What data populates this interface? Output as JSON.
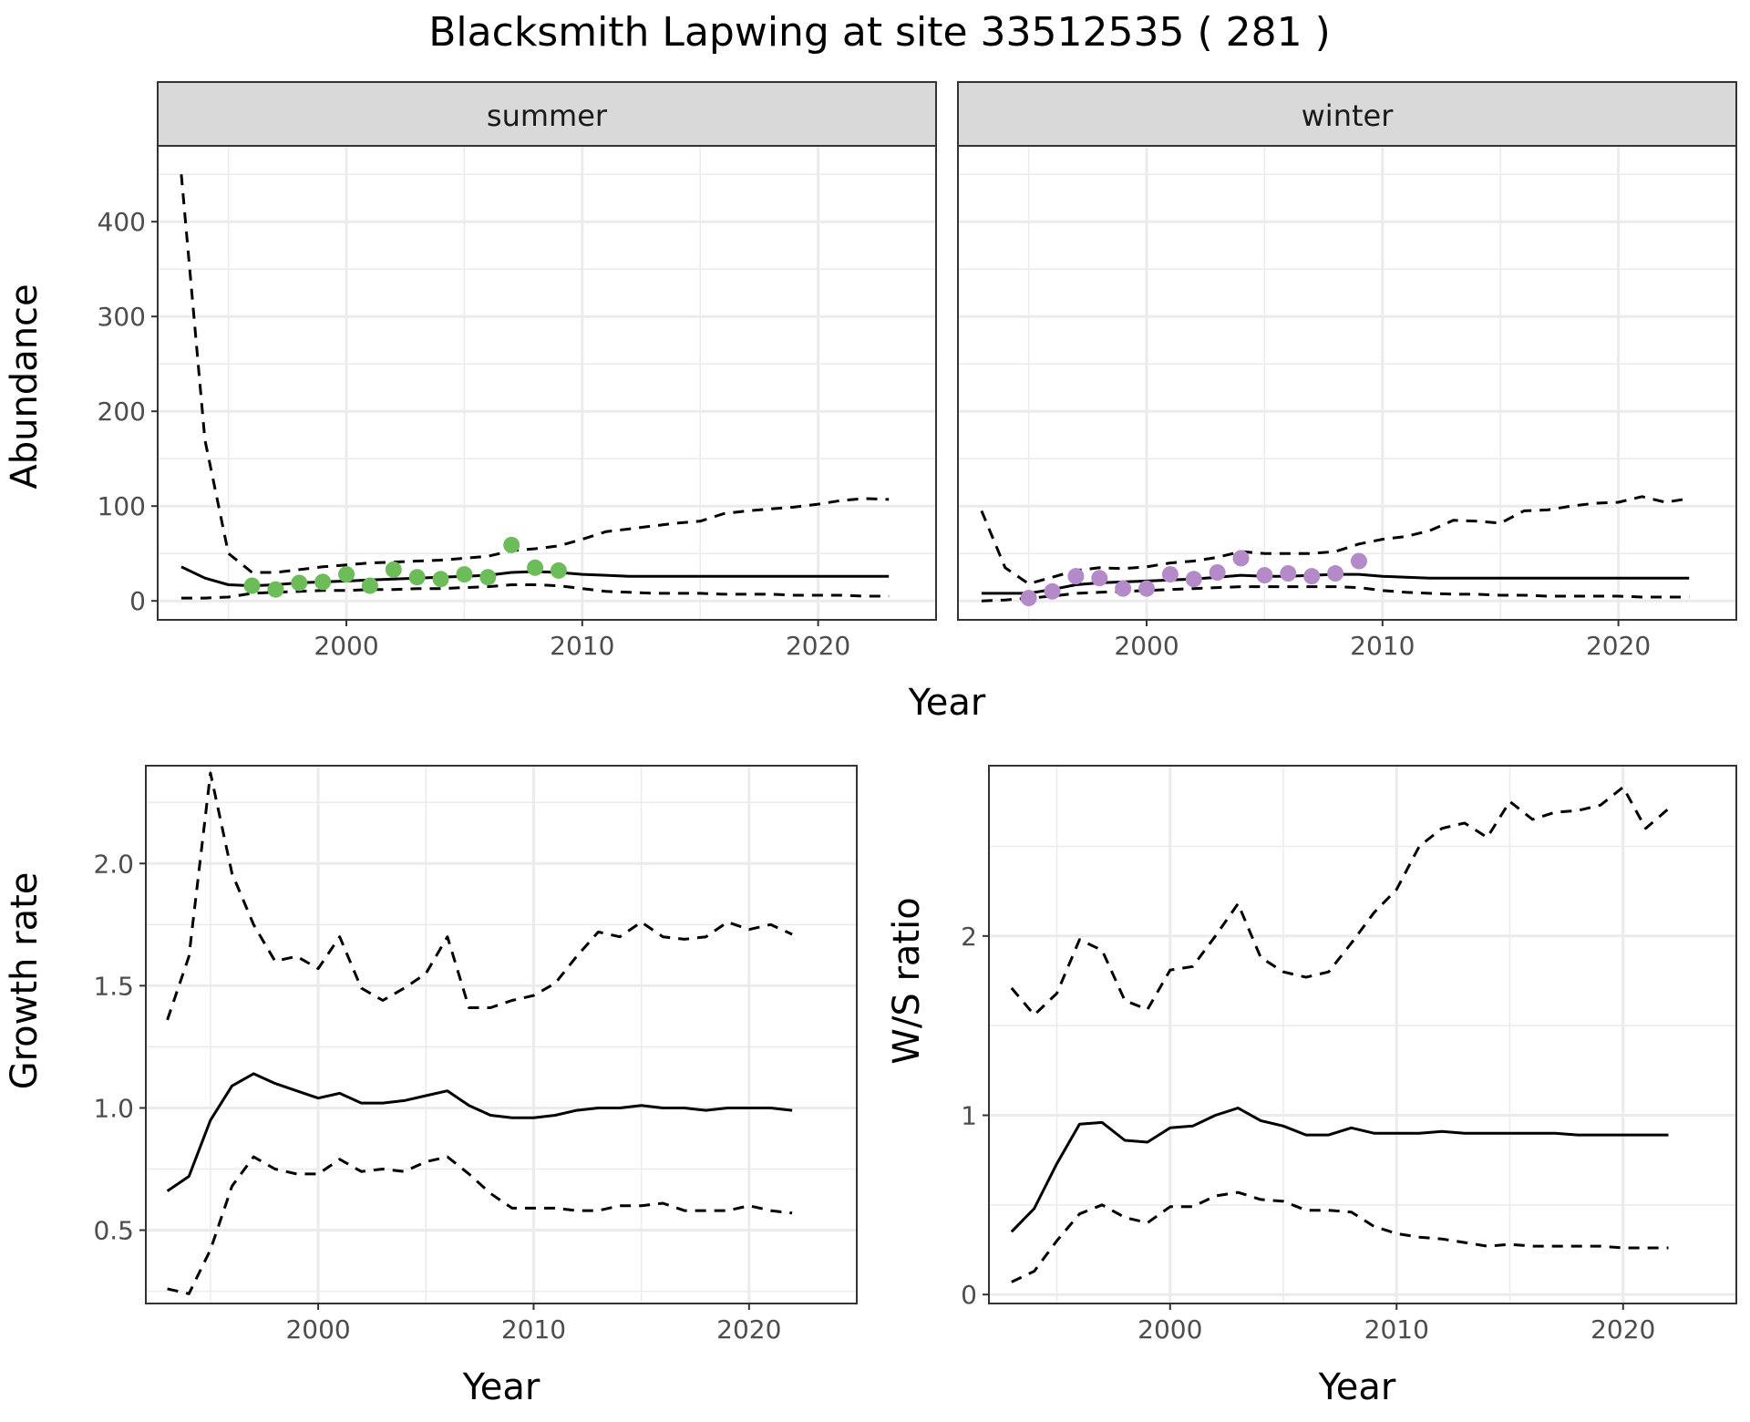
{
  "title": "Blacksmith Lapwing at site 33512535 ( 281 )",
  "colors": {
    "summer_points": "#6cbd59",
    "winter_points": "#b48ac9",
    "line": "#000000",
    "strip_fill": "#d9d9d9",
    "grid": "#ebebeb",
    "panel_border": "#333333"
  },
  "abundance_panel": {
    "xlabel": "Year",
    "ylabel": "Abundance",
    "xlim": [
      1992,
      2025
    ],
    "ylim": [
      -20,
      480
    ],
    "xticks": [
      2000,
      2010,
      2020
    ],
    "yticks": [
      0,
      100,
      200,
      300,
      400
    ]
  },
  "chart_data": [
    {
      "type": "line",
      "facet": "summer",
      "xlabel": "Year",
      "ylabel": "Abundance",
      "series": [
        {
          "style": "solid",
          "x": [
            1993,
            1994,
            1995,
            1996,
            1997,
            1998,
            1999,
            2000,
            2001,
            2002,
            2003,
            2004,
            2005,
            2006,
            2007,
            2008,
            2009,
            2010,
            2011,
            2012,
            2013,
            2014,
            2015,
            2016,
            2017,
            2018,
            2019,
            2020,
            2021,
            2022,
            2023
          ],
          "y": [
            36,
            24,
            17,
            16,
            17,
            19,
            20,
            21,
            22,
            23,
            24,
            25,
            26,
            27,
            30,
            31,
            30,
            28,
            27,
            26,
            26,
            26,
            26,
            26,
            26,
            26,
            26,
            26,
            26,
            26,
            26
          ]
        },
        {
          "style": "dashed",
          "x": [
            1993,
            1994,
            1995,
            1996,
            1997,
            1998,
            1999,
            2000,
            2001,
            2002,
            2003,
            2004,
            2005,
            2006,
            2007,
            2008,
            2009,
            2010,
            2011,
            2012,
            2013,
            2014,
            2015,
            2016,
            2017,
            2018,
            2019,
            2020,
            2021,
            2022,
            2023
          ],
          "y": [
            450,
            170,
            50,
            30,
            30,
            33,
            36,
            38,
            40,
            41,
            42,
            43,
            45,
            47,
            53,
            55,
            58,
            65,
            73,
            76,
            79,
            82,
            84,
            92,
            95,
            97,
            99,
            102,
            106,
            108,
            107
          ]
        },
        {
          "style": "dashed",
          "x": [
            1993,
            1994,
            1995,
            1996,
            1997,
            1998,
            1999,
            2000,
            2001,
            2002,
            2003,
            2004,
            2005,
            2006,
            2007,
            2008,
            2009,
            2010,
            2011,
            2012,
            2013,
            2014,
            2015,
            2016,
            2017,
            2018,
            2019,
            2020,
            2021,
            2022,
            2023
          ],
          "y": [
            3,
            3,
            4,
            8,
            9,
            10,
            11,
            11,
            12,
            12,
            13,
            13,
            14,
            15,
            17,
            17,
            16,
            13,
            10,
            9,
            8,
            8,
            8,
            7,
            7,
            7,
            6,
            6,
            6,
            5,
            5
          ]
        },
        {
          "style": "points",
          "x": [
            1996,
            1997,
            1998,
            1999,
            2000,
            2001,
            2002,
            2003,
            2004,
            2005,
            2006,
            2007,
            2008,
            2009
          ],
          "y": [
            16,
            12,
            19,
            20,
            28,
            16,
            33,
            25,
            23,
            28,
            25,
            59,
            35,
            32
          ]
        }
      ]
    },
    {
      "type": "line",
      "facet": "winter",
      "xlabel": "Year",
      "ylabel": "Abundance",
      "series": [
        {
          "style": "solid",
          "x": [
            1993,
            1994,
            1995,
            1996,
            1997,
            1998,
            1999,
            2000,
            2001,
            2002,
            2003,
            2004,
            2005,
            2006,
            2007,
            2008,
            2009,
            2010,
            2011,
            2012,
            2013,
            2014,
            2015,
            2016,
            2017,
            2018,
            2019,
            2020,
            2021,
            2022,
            2023
          ],
          "y": [
            8,
            8,
            8,
            12,
            17,
            19,
            20,
            21,
            22,
            23,
            25,
            27,
            26,
            26,
            27,
            28,
            28,
            26,
            25,
            24,
            24,
            24,
            24,
            24,
            24,
            24,
            24,
            24,
            24,
            24,
            24
          ]
        },
        {
          "style": "dashed",
          "x": [
            1993,
            1994,
            1995,
            1996,
            1997,
            1998,
            1999,
            2000,
            2001,
            2002,
            2003,
            2004,
            2005,
            2006,
            2007,
            2008,
            2009,
            2010,
            2011,
            2012,
            2013,
            2014,
            2015,
            2016,
            2017,
            2018,
            2019,
            2020,
            2021,
            2022,
            2023
          ],
          "y": [
            95,
            35,
            18,
            25,
            32,
            35,
            34,
            36,
            40,
            42,
            46,
            52,
            50,
            50,
            50,
            52,
            60,
            65,
            68,
            74,
            85,
            84,
            82,
            95,
            96,
            100,
            103,
            104,
            110,
            104,
            108
          ]
        },
        {
          "style": "dashed",
          "x": [
            1993,
            1994,
            1995,
            1996,
            1997,
            1998,
            1999,
            2000,
            2001,
            2002,
            2003,
            2004,
            2005,
            2006,
            2007,
            2008,
            2009,
            2010,
            2011,
            2012,
            2013,
            2014,
            2015,
            2016,
            2017,
            2018,
            2019,
            2020,
            2021,
            2022,
            2023
          ],
          "y": [
            0,
            1,
            3,
            5,
            8,
            9,
            10,
            11,
            12,
            13,
            14,
            15,
            15,
            15,
            15,
            15,
            14,
            11,
            9,
            8,
            7,
            7,
            6,
            6,
            5,
            5,
            5,
            5,
            4,
            4,
            4
          ]
        },
        {
          "style": "points",
          "x": [
            1995,
            1996,
            1997,
            1998,
            1999,
            2000,
            2001,
            2002,
            2003,
            2004,
            2005,
            2006,
            2007,
            2008,
            2009
          ],
          "y": [
            3,
            10,
            26,
            24,
            13,
            13,
            28,
            23,
            30,
            45,
            27,
            29,
            26,
            29,
            42
          ]
        }
      ]
    },
    {
      "type": "line",
      "xlabel": "Year",
      "ylabel": "Growth rate",
      "xlim": [
        1992,
        2025
      ],
      "ylim": [
        0.2,
        2.4
      ],
      "xticks": [
        2000,
        2010,
        2020
      ],
      "yticks": [
        0.5,
        1.0,
        1.5,
        2.0
      ],
      "ytick_labels": [
        "0.5",
        "1.0",
        "1.5",
        "2.0"
      ],
      "series": [
        {
          "style": "solid",
          "x": [
            1993,
            1994,
            1995,
            1996,
            1997,
            1998,
            1999,
            2000,
            2001,
            2002,
            2003,
            2004,
            2005,
            2006,
            2007,
            2008,
            2009,
            2010,
            2011,
            2012,
            2013,
            2014,
            2015,
            2016,
            2017,
            2018,
            2019,
            2020,
            2021,
            2022
          ],
          "y": [
            0.66,
            0.72,
            0.95,
            1.09,
            1.14,
            1.1,
            1.07,
            1.04,
            1.06,
            1.02,
            1.02,
            1.03,
            1.05,
            1.07,
            1.01,
            0.97,
            0.96,
            0.96,
            0.97,
            0.99,
            1.0,
            1.0,
            1.01,
            1.0,
            1.0,
            0.99,
            1.0,
            1.0,
            1.0,
            0.99
          ]
        },
        {
          "style": "dashed",
          "x": [
            1993,
            1994,
            1995,
            1996,
            1997,
            1998,
            1999,
            2000,
            2001,
            2002,
            2003,
            2004,
            2005,
            2006,
            2007,
            2008,
            2009,
            2010,
            2011,
            2012,
            2013,
            2014,
            2015,
            2016,
            2017,
            2018,
            2019,
            2020,
            2021,
            2022
          ],
          "y": [
            1.36,
            1.62,
            2.37,
            1.96,
            1.75,
            1.6,
            1.62,
            1.57,
            1.7,
            1.49,
            1.44,
            1.49,
            1.55,
            1.7,
            1.41,
            1.41,
            1.44,
            1.46,
            1.51,
            1.62,
            1.72,
            1.7,
            1.76,
            1.7,
            1.69,
            1.7,
            1.76,
            1.73,
            1.75,
            1.71
          ]
        },
        {
          "style": "dashed",
          "x": [
            1993,
            1994,
            1995,
            1996,
            1997,
            1998,
            1999,
            2000,
            2001,
            2002,
            2003,
            2004,
            2005,
            2006,
            2007,
            2008,
            2009,
            2010,
            2011,
            2012,
            2013,
            2014,
            2015,
            2016,
            2017,
            2018,
            2019,
            2020,
            2021,
            2022
          ],
          "y": [
            0.26,
            0.24,
            0.42,
            0.68,
            0.8,
            0.75,
            0.73,
            0.73,
            0.79,
            0.74,
            0.75,
            0.74,
            0.78,
            0.8,
            0.73,
            0.65,
            0.59,
            0.59,
            0.59,
            0.58,
            0.58,
            0.6,
            0.6,
            0.61,
            0.58,
            0.58,
            0.58,
            0.6,
            0.58,
            0.57
          ]
        }
      ]
    },
    {
      "type": "line",
      "xlabel": "Year",
      "ylabel": "W/S ratio",
      "xlim": [
        1992,
        2025
      ],
      "ylim": [
        -0.05,
        2.95
      ],
      "xticks": [
        2000,
        2010,
        2020
      ],
      "yticks": [
        0,
        1,
        2
      ],
      "ytick_labels": [
        "0",
        "1",
        "2"
      ],
      "series": [
        {
          "style": "solid",
          "x": [
            1993,
            1994,
            1995,
            1996,
            1997,
            1998,
            1999,
            2000,
            2001,
            2002,
            2003,
            2004,
            2005,
            2006,
            2007,
            2008,
            2009,
            2010,
            2011,
            2012,
            2013,
            2014,
            2015,
            2016,
            2017,
            2018,
            2019,
            2020,
            2021,
            2022
          ],
          "y": [
            0.35,
            0.48,
            0.73,
            0.95,
            0.96,
            0.86,
            0.85,
            0.93,
            0.94,
            1.0,
            1.04,
            0.97,
            0.94,
            0.89,
            0.89,
            0.93,
            0.9,
            0.9,
            0.9,
            0.91,
            0.9,
            0.9,
            0.9,
            0.9,
            0.9,
            0.89,
            0.89,
            0.89,
            0.89,
            0.89
          ]
        },
        {
          "style": "dashed",
          "x": [
            1993,
            1994,
            1995,
            1996,
            1997,
            1998,
            1999,
            2000,
            2001,
            2002,
            2003,
            2004,
            2005,
            2006,
            2007,
            2008,
            2009,
            2010,
            2011,
            2012,
            2013,
            2014,
            2015,
            2016,
            2017,
            2018,
            2019,
            2020,
            2021,
            2022
          ],
          "y": [
            1.71,
            1.56,
            1.68,
            1.98,
            1.92,
            1.64,
            1.59,
            1.81,
            1.83,
            2.0,
            2.18,
            1.88,
            1.8,
            1.77,
            1.8,
            1.96,
            2.13,
            2.26,
            2.5,
            2.6,
            2.63,
            2.55,
            2.75,
            2.65,
            2.69,
            2.7,
            2.73,
            2.83,
            2.6,
            2.71
          ]
        },
        {
          "style": "dashed",
          "x": [
            1993,
            1994,
            1995,
            1996,
            1997,
            1998,
            1999,
            2000,
            2001,
            2002,
            2003,
            2004,
            2005,
            2006,
            2007,
            2008,
            2009,
            2010,
            2011,
            2012,
            2013,
            2014,
            2015,
            2016,
            2017,
            2018,
            2019,
            2020,
            2021,
            2022
          ],
          "y": [
            0.07,
            0.13,
            0.3,
            0.45,
            0.5,
            0.43,
            0.4,
            0.49,
            0.49,
            0.55,
            0.57,
            0.53,
            0.52,
            0.47,
            0.47,
            0.46,
            0.38,
            0.34,
            0.32,
            0.31,
            0.29,
            0.27,
            0.28,
            0.27,
            0.27,
            0.27,
            0.27,
            0.26,
            0.26,
            0.26
          ]
        }
      ]
    }
  ]
}
